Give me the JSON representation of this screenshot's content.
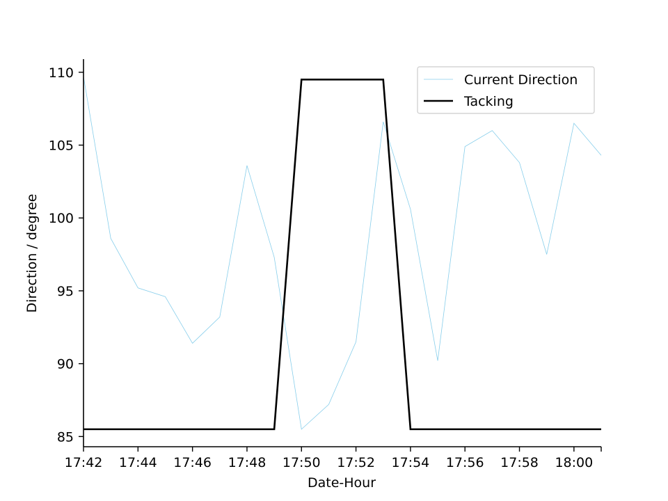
{
  "chart_data": {
    "type": "line",
    "title": "",
    "xlabel": "Date-Hour",
    "ylabel": "Direction / degree",
    "xlim": [
      "17:42",
      "18:01"
    ],
    "ylim": [
      84.3,
      110.9
    ],
    "x_ticks": [
      "17:42",
      "17:44",
      "17:46",
      "17:48",
      "17:50",
      "17:52",
      "17:54",
      "17:56",
      "17:58",
      "18:00"
    ],
    "y_ticks": [
      85,
      90,
      95,
      100,
      105,
      110
    ],
    "x": [
      "17:42",
      "17:43",
      "17:44",
      "17:45",
      "17:46",
      "17:47",
      "17:48",
      "17:49",
      "17:50",
      "17:51",
      "17:52",
      "17:53",
      "17:54",
      "17:55",
      "17:56",
      "17:57",
      "17:58",
      "17:59",
      "18:00",
      "18:01"
    ],
    "series": [
      {
        "name": "Current Direction",
        "color": "#87ceeb",
        "values": [
          109.7,
          98.6,
          95.2,
          94.6,
          91.4,
          93.2,
          103.6,
          97.3,
          85.5,
          87.2,
          91.5,
          106.6,
          100.6,
          90.2,
          104.9,
          106.0,
          103.8,
          97.5,
          106.5,
          104.3
        ]
      },
      {
        "name": "Tacking",
        "color": "#000000",
        "values": [
          85.5,
          85.5,
          85.5,
          85.5,
          85.5,
          85.5,
          85.5,
          85.5,
          109.5,
          109.5,
          109.5,
          109.5,
          85.5,
          85.5,
          85.5,
          85.5,
          85.5,
          85.5,
          85.5,
          85.5
        ]
      }
    ],
    "grid": false,
    "legend_position": "top-right"
  }
}
